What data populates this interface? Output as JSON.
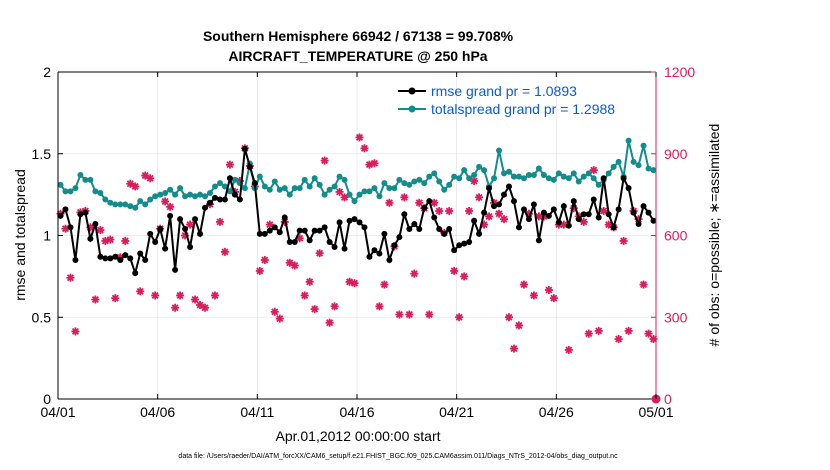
{
  "chart_data": {
    "type": "line",
    "title": "Southern Hemisphere 66942 / 67138 = 99.708%",
    "subtitle": "AIRCRAFT_TEMPERATURE @ 250 hPa",
    "xlabel": "Apr.01,2012 00:00:00 start",
    "ylabel_left": "rmse and totalspread",
    "ylabel_right": "# of obs: o=possible; ∗=assimilated",
    "xlim": [
      0,
      30
    ],
    "ylim": [
      0,
      2
    ],
    "ylim_right": [
      0,
      1200
    ],
    "x_tick_values": [
      0,
      5,
      10,
      15,
      20,
      25,
      30
    ],
    "x_tick_labels": [
      "04/01",
      "04/06",
      "04/11",
      "04/16",
      "04/21",
      "04/26",
      "05/01"
    ],
    "y_ticks": [
      "0",
      "0.5",
      "1",
      "1.5",
      "2"
    ],
    "y_tick_values": [
      0,
      0.5,
      1,
      1.5,
      2
    ],
    "y_ticks_right": [
      "0",
      "300",
      "600",
      "900",
      "1200"
    ],
    "y_tick_values_right": [
      0,
      300,
      600,
      900,
      1200
    ],
    "legend_position": "top-right",
    "footnote": "data file: /Users/raeder/DAI/ATM_forcXX/CAM6_setup/f.e21.FHIST_BGC.f09_025.CAM6assim.011/Diags_NTrS_2012-04/obs_diag_output.nc",
    "colors": {
      "rmse": "#000000",
      "spread": "#138c8c",
      "obs": "#d81e5b",
      "legend_text": "#0b5bd8"
    },
    "series": [
      {
        "name": "rmse grand pr = 1.0893",
        "axis": "left",
        "x": [
          0.125,
          0.375,
          0.625,
          0.875,
          1.125,
          1.375,
          1.625,
          1.875,
          2.125,
          2.375,
          2.625,
          2.875,
          3.125,
          3.375,
          3.625,
          3.875,
          4.125,
          4.375,
          4.625,
          4.875,
          5.125,
          5.375,
          5.625,
          5.875,
          6.125,
          6.375,
          6.625,
          6.875,
          7.125,
          7.375,
          7.625,
          7.875,
          8.125,
          8.375,
          8.625,
          8.875,
          9.125,
          9.375,
          9.625,
          9.875,
          10.125,
          10.375,
          10.625,
          10.875,
          11.125,
          11.375,
          11.625,
          11.875,
          12.125,
          12.375,
          12.625,
          12.875,
          13.125,
          13.375,
          13.625,
          13.875,
          14.125,
          14.375,
          14.625,
          14.875,
          15.125,
          15.375,
          15.625,
          15.875,
          16.125,
          16.375,
          16.625,
          16.875,
          17.125,
          17.375,
          17.625,
          17.875,
          18.125,
          18.375,
          18.625,
          18.875,
          19.125,
          19.375,
          19.625,
          19.875,
          20.125,
          20.375,
          20.625,
          20.875,
          21.125,
          21.375,
          21.625,
          21.875,
          22.125,
          22.375,
          22.625,
          22.875,
          23.125,
          23.375,
          23.625,
          23.875,
          24.125,
          24.375,
          24.625,
          24.875,
          25.125,
          25.375,
          25.625,
          25.875,
          26.125,
          26.375,
          26.625,
          26.875,
          27.125,
          27.375,
          27.625,
          27.875,
          28.125,
          28.375,
          28.625,
          28.875,
          29.125,
          29.375,
          29.625,
          29.875
        ],
        "y": [
          1.12,
          1.16,
          1.05,
          0.85,
          1.13,
          1.14,
          0.98,
          1.07,
          0.87,
          0.86,
          0.86,
          0.87,
          0.85,
          0.88,
          0.86,
          0.77,
          0.89,
          0.85,
          1.01,
          0.96,
          1.04,
          0.92,
          1.12,
          0.79,
          1.1,
          1.04,
          0.93,
          1.1,
          1.01,
          1.17,
          1.2,
          1.23,
          1.22,
          1.22,
          1.35,
          1.25,
          1.22,
          1.53,
          1.42,
          1.32,
          1.01,
          1.01,
          1.03,
          1.05,
          1.02,
          1.11,
          0.96,
          0.96,
          1.03,
          1.03,
          0.97,
          1.03,
          1.03,
          1.05,
          0.96,
          0.93,
          1.08,
          0.92,
          1.09,
          1.1,
          1.08,
          1.05,
          0.87,
          0.91,
          0.89,
          1.01,
          0.85,
          0.94,
          0.99,
          1.13,
          1.04,
          1.07,
          1.04,
          1.17,
          1.21,
          1.11,
          1.04,
          1.01,
          1.04,
          0.91,
          0.94,
          0.95,
          0.96,
          1.09,
          1.01,
          1.14,
          1.29,
          1.18,
          1.19,
          1.25,
          1.3,
          1.21,
          1.05,
          1.16,
          1.1,
          1.19,
          0.97,
          1.14,
          1.12,
          1.16,
          1.08,
          1.18,
          1.06,
          1.21,
          1.1,
          1.13,
          1.13,
          1.22,
          1.11,
          1.35,
          1.13,
          1.05,
          1.16,
          1.35,
          1.29,
          1.14,
          1.07,
          1.18,
          1.14,
          1.09
        ]
      },
      {
        "name": "totalspread grand pr = 1.2988",
        "axis": "left",
        "x": [
          0.125,
          0.375,
          0.625,
          0.875,
          1.125,
          1.375,
          1.625,
          1.875,
          2.125,
          2.375,
          2.625,
          2.875,
          3.125,
          3.375,
          3.625,
          3.875,
          4.125,
          4.375,
          4.625,
          4.875,
          5.125,
          5.375,
          5.625,
          5.875,
          6.125,
          6.375,
          6.625,
          6.875,
          7.125,
          7.375,
          7.625,
          7.875,
          8.125,
          8.375,
          8.625,
          8.875,
          9.125,
          9.375,
          9.625,
          9.875,
          10.125,
          10.375,
          10.625,
          10.875,
          11.125,
          11.375,
          11.625,
          11.875,
          12.125,
          12.375,
          12.625,
          12.875,
          13.125,
          13.375,
          13.625,
          13.875,
          14.125,
          14.375,
          14.625,
          14.875,
          15.125,
          15.375,
          15.625,
          15.875,
          16.125,
          16.375,
          16.625,
          16.875,
          17.125,
          17.375,
          17.625,
          17.875,
          18.125,
          18.375,
          18.625,
          18.875,
          19.125,
          19.375,
          19.625,
          19.875,
          20.125,
          20.375,
          20.625,
          20.875,
          21.125,
          21.375,
          21.625,
          21.875,
          22.125,
          22.375,
          22.625,
          22.875,
          23.125,
          23.375,
          23.625,
          23.875,
          24.125,
          24.375,
          24.625,
          24.875,
          25.125,
          25.375,
          25.625,
          25.875,
          26.125,
          26.375,
          26.625,
          26.875,
          27.125,
          27.375,
          27.625,
          27.875,
          28.125,
          28.375,
          28.625,
          28.875,
          29.125,
          29.375,
          29.625,
          29.875
        ],
        "y": [
          1.31,
          1.27,
          1.27,
          1.29,
          1.37,
          1.34,
          1.34,
          1.27,
          1.26,
          1.22,
          1.2,
          1.19,
          1.19,
          1.19,
          1.18,
          1.17,
          1.21,
          1.19,
          1.22,
          1.24,
          1.25,
          1.26,
          1.28,
          1.25,
          1.29,
          1.24,
          1.25,
          1.24,
          1.25,
          1.24,
          1.26,
          1.3,
          1.32,
          1.3,
          1.27,
          1.34,
          1.32,
          1.29,
          1.44,
          1.29,
          1.36,
          1.3,
          1.28,
          1.33,
          1.28,
          1.29,
          1.25,
          1.29,
          1.29,
          1.34,
          1.3,
          1.35,
          1.31,
          1.25,
          1.28,
          1.3,
          1.36,
          1.34,
          1.25,
          1.21,
          1.25,
          1.27,
          1.27,
          1.29,
          1.24,
          1.32,
          1.29,
          1.29,
          1.34,
          1.32,
          1.31,
          1.33,
          1.34,
          1.32,
          1.36,
          1.38,
          1.33,
          1.28,
          1.31,
          1.36,
          1.35,
          1.4,
          1.35,
          1.37,
          1.42,
          1.4,
          1.3,
          1.35,
          1.52,
          1.38,
          1.39,
          1.36,
          1.36,
          1.35,
          1.37,
          1.37,
          1.41,
          1.37,
          1.35,
          1.34,
          1.38,
          1.36,
          1.35,
          1.38,
          1.33,
          1.36,
          1.38,
          1.35,
          1.31,
          1.34,
          1.38,
          1.42,
          1.45,
          1.36,
          1.58,
          1.45,
          1.43,
          1.55,
          1.41,
          1.4
        ]
      },
      {
        "name": "possible",
        "axis": "right",
        "marker": "o",
        "x": [
          30
        ],
        "y": [
          0
        ]
      },
      {
        "name": "assimilated",
        "axis": "right",
        "marker": "*",
        "x": [
          0.125,
          0.375,
          0.625,
          0.875,
          1.125,
          1.375,
          1.625,
          1.875,
          2.125,
          2.375,
          2.625,
          2.875,
          3.125,
          3.375,
          3.625,
          3.875,
          4.125,
          4.375,
          4.625,
          4.875,
          5.125,
          5.375,
          5.625,
          5.875,
          6.125,
          6.375,
          6.625,
          6.875,
          7.125,
          7.375,
          7.625,
          7.875,
          8.125,
          8.375,
          8.625,
          8.875,
          9.125,
          9.375,
          9.625,
          9.875,
          10.125,
          10.375,
          10.625,
          10.875,
          11.125,
          11.375,
          11.625,
          11.875,
          12.125,
          12.375,
          12.625,
          12.875,
          13.125,
          13.375,
          13.625,
          13.875,
          14.125,
          14.375,
          14.625,
          14.875,
          15.125,
          15.375,
          15.625,
          15.875,
          16.125,
          16.375,
          16.625,
          16.875,
          17.125,
          17.375,
          17.625,
          17.875,
          18.125,
          18.375,
          18.625,
          18.875,
          19.125,
          19.375,
          19.625,
          19.875,
          20.125,
          20.375,
          20.625,
          20.875,
          21.125,
          21.375,
          21.625,
          21.875,
          22.125,
          22.375,
          22.625,
          22.875,
          23.125,
          23.375,
          23.625,
          23.875,
          24.125,
          24.375,
          24.625,
          24.875,
          25.125,
          25.375,
          25.625,
          25.875,
          26.125,
          26.375,
          26.625,
          26.875,
          27.125,
          27.375,
          27.625,
          27.875,
          28.125,
          28.375,
          28.625,
          28.875,
          29.125,
          29.375,
          29.625,
          29.875
        ],
        "y": [
          680,
          625,
          445,
          248,
          685,
          690,
          630,
          365,
          620,
          580,
          585,
          370,
          520,
          580,
          790,
          780,
          395,
          820,
          810,
          380,
          625,
          725,
          705,
          335,
          380,
          600,
          640,
          365,
          345,
          335,
          715,
          380,
          650,
          540,
          860,
          760,
          800,
          920,
          855,
          780,
          470,
          510,
          640,
          320,
          295,
          650,
          500,
          490,
          590,
          380,
          430,
          330,
          535,
          875,
          280,
          340,
          760,
          740,
          430,
          425,
          960,
          920,
          860,
          865,
          340,
          420,
          720,
          560,
          310,
          740,
          310,
          460,
          720,
          700,
          310,
          720,
          690,
          610,
          690,
          470,
          300,
          450,
          690,
          800,
          740,
          640,
          670,
          720,
          680,
          660,
          300,
          185,
          270,
          420,
          680,
          380,
          670,
          670,
          400,
          370,
          640,
          640,
          180,
          700,
          670,
          650,
          240,
          840,
          250,
          690,
          640,
          630,
          220,
          580,
          250,
          690,
          660,
          420,
          240,
          220
        ]
      }
    ]
  }
}
